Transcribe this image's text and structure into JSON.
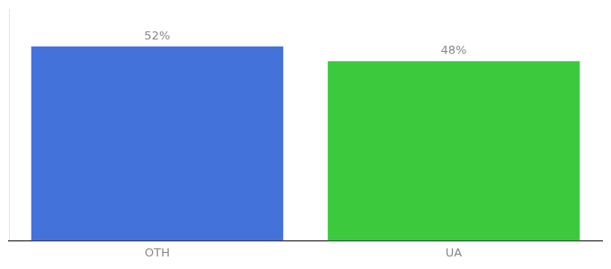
{
  "chart_data": {
    "type": "bar",
    "categories": [
      "OTH",
      "UA"
    ],
    "values": [
      52,
      48
    ],
    "value_labels": [
      "52%",
      "48%"
    ],
    "colors": [
      "#4472db",
      "#3dc93d"
    ],
    "ylim": [
      0,
      62
    ],
    "data_labels": true,
    "tick_labels": "x",
    "grid": false
  }
}
